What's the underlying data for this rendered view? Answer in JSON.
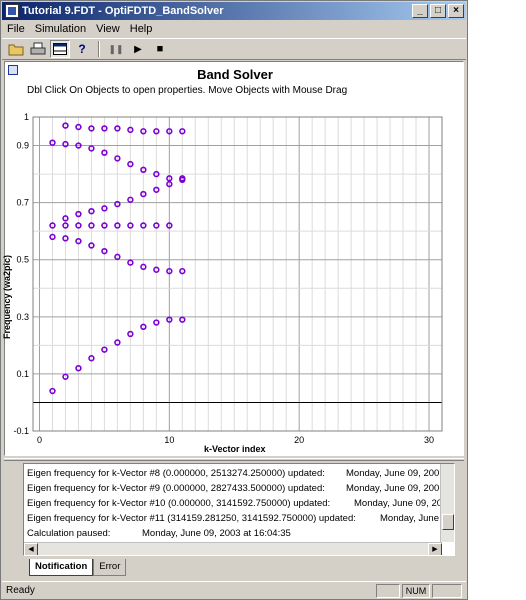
{
  "window": {
    "title": "Tutorial 9.FDT - OptiFDTD_BandSolver",
    "controls": [
      "_",
      "□",
      "×"
    ]
  },
  "menu": [
    "File",
    "Simulation",
    "View",
    "Help"
  ],
  "toolbar": {
    "icons": [
      "open-folder-icon",
      "print-icon",
      "panel-icon",
      "help-icon",
      "pause-icon",
      "play-icon",
      "stop-icon"
    ],
    "glyphs": {
      "pause": "❚❚",
      "play": "▶",
      "stop": "■",
      "help": "?"
    }
  },
  "chart_window": {
    "title": "Band Solver",
    "subtitle": "Dbl Click On Objects to open properties.  Move Objects with Mouse Drag"
  },
  "chart_data": {
    "type": "scatter",
    "title": "Band Solver",
    "xlabel": "k-Vector index",
    "ylabel": "Frequency (wa2pic)",
    "xlim": [
      -0.5,
      31
    ],
    "ylim": [
      -0.1,
      1.0
    ],
    "x_ticks": [
      "0",
      "10",
      "20",
      "30"
    ],
    "y_ticks": [
      "-0.1",
      "0.1",
      "0.3",
      "0.5",
      "0.7",
      "0.9",
      "1"
    ],
    "grid": true,
    "marker_color": "#7a00d4",
    "series": [
      {
        "x": [
          1,
          2,
          3,
          4,
          5,
          6,
          7,
          8,
          9,
          10,
          11
        ],
        "values": [
          0.04,
          0.09,
          0.12,
          0.155,
          0.185,
          0.21,
          0.24,
          0.265,
          0.28,
          0.29,
          0.29
        ]
      },
      {
        "x": [
          1,
          2,
          3,
          4,
          5,
          6,
          7,
          8,
          9,
          10,
          11
        ],
        "values": [
          0.58,
          0.575,
          0.565,
          0.55,
          0.53,
          0.51,
          0.49,
          0.475,
          0.465,
          0.46,
          0.46
        ]
      },
      {
        "x": [
          1,
          2,
          3,
          4,
          5,
          6,
          7,
          8,
          9,
          10
        ],
        "values": [
          0.62,
          0.62,
          0.62,
          0.62,
          0.62,
          0.62,
          0.62,
          0.62,
          0.62,
          0.62
        ]
      },
      {
        "x": [
          2,
          3,
          4,
          5,
          6,
          7,
          8,
          9,
          10,
          11
        ],
        "values": [
          0.645,
          0.66,
          0.67,
          0.68,
          0.695,
          0.71,
          0.73,
          0.745,
          0.765,
          0.785
        ]
      },
      {
        "x": [
          1,
          2,
          3,
          4,
          5,
          6,
          7,
          8,
          9,
          10,
          11
        ],
        "values": [
          0.91,
          0.905,
          0.9,
          0.89,
          0.875,
          0.855,
          0.835,
          0.815,
          0.8,
          0.785,
          0.78
        ]
      },
      {
        "x": [
          2,
          3,
          4,
          5,
          6,
          7,
          8,
          9,
          10,
          11
        ],
        "values": [
          0.97,
          0.965,
          0.96,
          0.96,
          0.96,
          0.955,
          0.95,
          0.95,
          0.95,
          0.95
        ]
      }
    ]
  },
  "log": {
    "rows": [
      {
        "text": "Eigen frequency for k-Vector #8 (0.000000, 2513274.250000) updated:",
        "date": "Monday, June 09, 200"
      },
      {
        "text": "Eigen frequency for k-Vector #9 (0.000000, 2827433.500000) updated:",
        "date": "Monday, June 09, 200"
      },
      {
        "text": "Eigen frequency for k-Vector #10 (0.000000, 3141592.750000) updated:",
        "date": "Monday, June 09, 200"
      },
      {
        "text": "Eigen frequency for k-Vector #11 (314159.281250, 3141592.750000) updated:",
        "date": "Monday, June 09, 2"
      },
      {
        "text": "Calculation paused:",
        "date": "Monday, June 09, 2003 at 16:04:35"
      }
    ]
  },
  "tabs": [
    {
      "label": "Notification",
      "active": true
    },
    {
      "label": "Error",
      "active": false
    }
  ],
  "status": {
    "text": "Ready",
    "indicator": "NUM"
  }
}
